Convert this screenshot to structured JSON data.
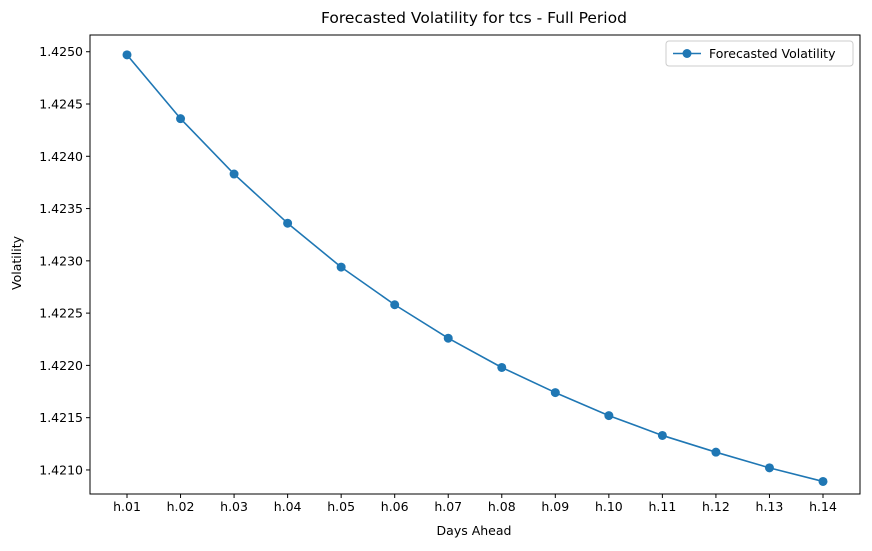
{
  "chart_data": {
    "type": "line",
    "title": "Forecasted Volatility for tcs - Full Period",
    "xlabel": "Days Ahead",
    "ylabel": "Volatility",
    "categories": [
      "h.01",
      "h.02",
      "h.03",
      "h.04",
      "h.05",
      "h.06",
      "h.07",
      "h.08",
      "h.09",
      "h.10",
      "h.11",
      "h.12",
      "h.13",
      "h.14"
    ],
    "series": [
      {
        "name": "Forecasted Volatility",
        "color": "#1f77b4",
        "marker": "circle",
        "values": [
          1.42497,
          1.42436,
          1.42383,
          1.42336,
          1.42294,
          1.42258,
          1.42226,
          1.42198,
          1.42174,
          1.42152,
          1.42133,
          1.42117,
          1.42102,
          1.42089
        ]
      }
    ],
    "yticks": [
      "1.4210",
      "1.4215",
      "1.4220",
      "1.4225",
      "1.4230",
      "1.4235",
      "1.4240",
      "1.4245",
      "1.4250"
    ],
    "ylim": [
      1.42077,
      1.42516
    ],
    "grid": false,
    "legend_position": "top-right"
  }
}
